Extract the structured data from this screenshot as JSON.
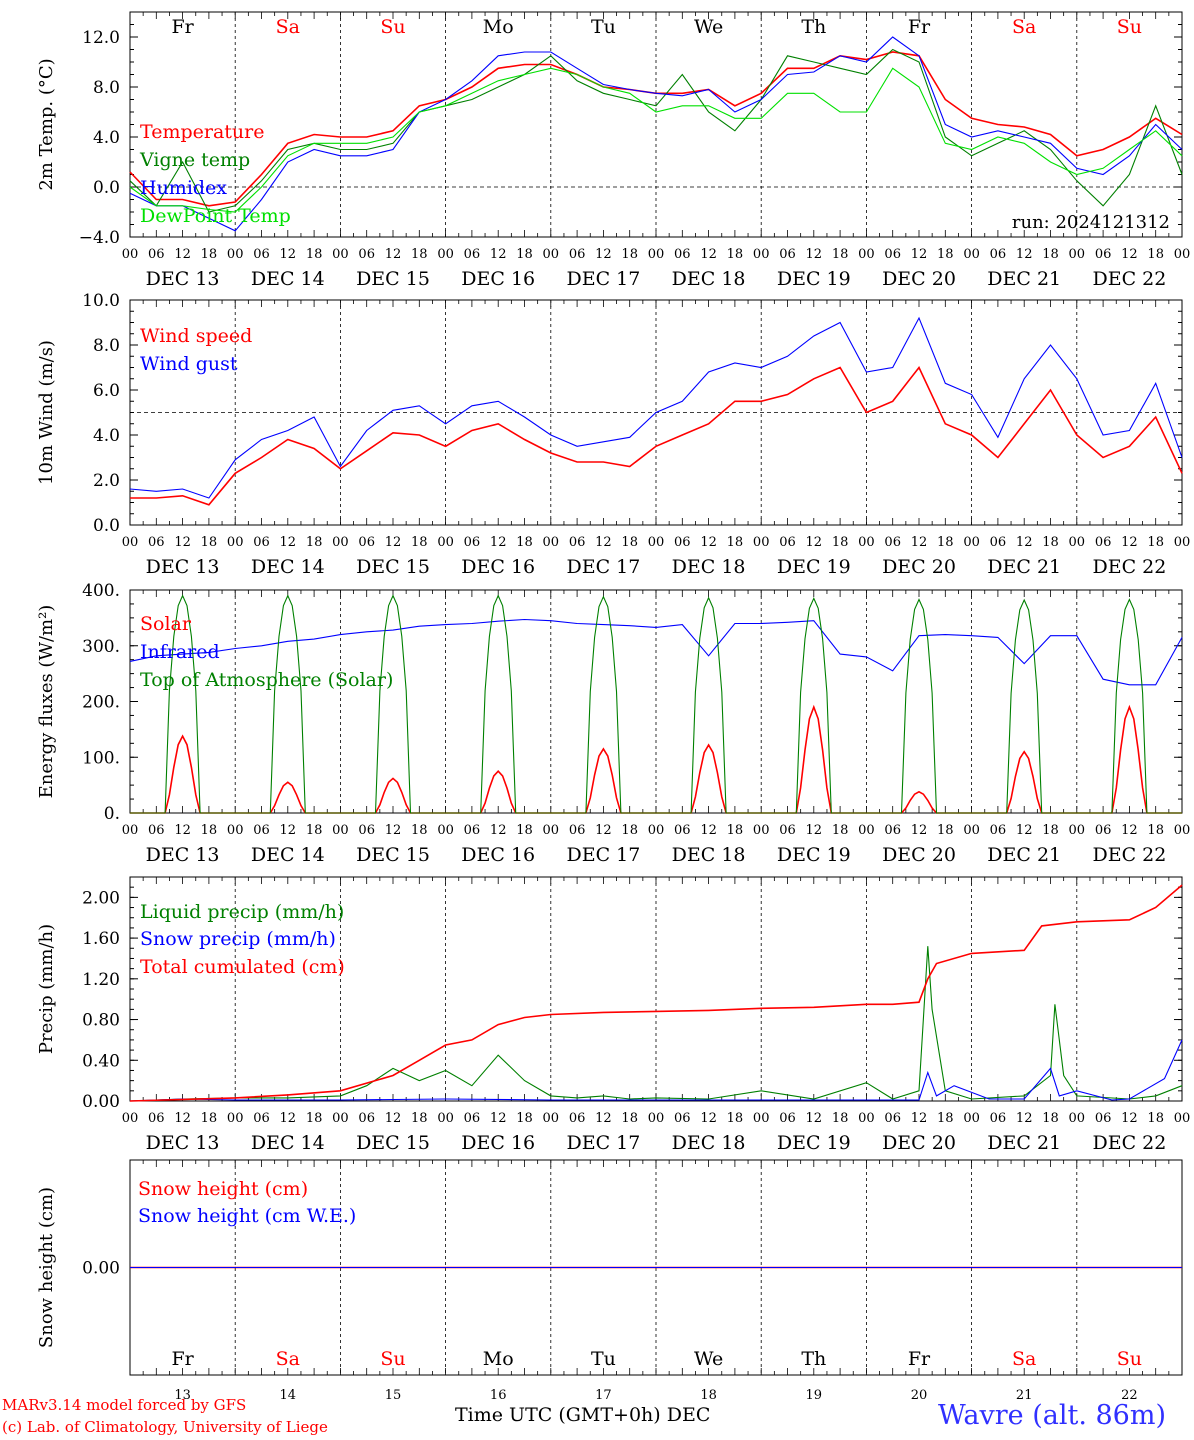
{
  "meta": {
    "run_label": "run: 2024121312",
    "credit1": "MARv3.14 model forced by GFS",
    "credit2": "(c) Lab. of Climatology, University of Liege",
    "station": "Wavre (alt. 86m)",
    "xaxis_title": "Time UTC (GMT+0h) DEC"
  },
  "days": {
    "names": [
      "Fr",
      "Sa",
      "Su",
      "Mo",
      "Tu",
      "We",
      "Th",
      "Fr",
      "Sa",
      "Su"
    ],
    "weekend": [
      false,
      true,
      true,
      false,
      false,
      false,
      false,
      false,
      true,
      true
    ],
    "dates": [
      "DEC 13",
      "DEC 14",
      "DEC 15",
      "DEC 16",
      "DEC 17",
      "DEC 18",
      "DEC 19",
      "DEC 20",
      "DEC 21",
      "DEC 22"
    ],
    "numbers": [
      "13",
      "14",
      "15",
      "16",
      "17",
      "18",
      "19",
      "20",
      "21",
      "22"
    ],
    "hour_ticks": [
      "00",
      "06",
      "12",
      "18"
    ],
    "final_tick": "00"
  },
  "colors": {
    "red": "#ff0000",
    "green": "#008000",
    "blue": "#0000ff",
    "lightgreen": "#00e000",
    "weekend": "#ff0000",
    "axis": "#000000"
  },
  "chart_data": [
    {
      "type": "line",
      "id": "temp",
      "ylabel": "2m Temp. (°C)",
      "ylim": [
        -4,
        14
      ],
      "yticks": [
        -4,
        0,
        4,
        8,
        12
      ],
      "ytick_labels": [
        "−4.0",
        "0.0",
        "4.0",
        "8.0",
        "12.0"
      ],
      "x_unit": "hours since DEC 13 00 UTC",
      "xlim": [
        0,
        240
      ],
      "dashed_hline": 0,
      "series": [
        {
          "name": "Temperature",
          "color": "red",
          "x": [
            0,
            6,
            12,
            18,
            24,
            30,
            36,
            42,
            48,
            54,
            60,
            66,
            72,
            78,
            84,
            90,
            96,
            102,
            108,
            114,
            120,
            126,
            132,
            138,
            144,
            150,
            156,
            162,
            168,
            174,
            180,
            186,
            192,
            198,
            204,
            210,
            216,
            222,
            228,
            234,
            240
          ],
          "y": [
            1.2,
            -1.0,
            -1.0,
            -1.5,
            -1.2,
            1.0,
            3.5,
            4.2,
            4.0,
            4.0,
            4.5,
            6.5,
            7.0,
            8.0,
            9.5,
            9.8,
            9.8,
            9.0,
            8.0,
            7.8,
            7.5,
            7.5,
            7.8,
            6.5,
            7.5,
            9.5,
            9.5,
            10.5,
            10.2,
            10.8,
            10.5,
            7.0,
            5.5,
            5.0,
            4.8,
            4.2,
            2.5,
            3.0,
            4.0,
            5.5,
            4.2
          ]
        },
        {
          "name": "Vigne temp",
          "color": "green",
          "x": [
            0,
            6,
            12,
            18,
            24,
            30,
            36,
            42,
            48,
            54,
            60,
            66,
            72,
            78,
            84,
            90,
            96,
            102,
            108,
            114,
            120,
            126,
            132,
            138,
            144,
            150,
            156,
            162,
            168,
            174,
            180,
            186,
            192,
            198,
            204,
            210,
            216,
            222,
            228,
            234,
            240
          ],
          "y": [
            0.5,
            -1.5,
            2.0,
            -2.0,
            -1.5,
            0.5,
            3.0,
            3.5,
            3.0,
            3.0,
            3.5,
            6.0,
            6.5,
            7.0,
            8.0,
            9.0,
            10.5,
            8.5,
            7.5,
            7.0,
            6.5,
            9.0,
            6.0,
            4.5,
            7.0,
            10.5,
            10.0,
            9.5,
            9.0,
            11.0,
            10.0,
            4.0,
            2.5,
            3.5,
            4.5,
            3.0,
            0.5,
            -1.5,
            1.0,
            6.5,
            1.0
          ]
        },
        {
          "name": "Humidex",
          "color": "blue",
          "x": [
            0,
            6,
            12,
            18,
            24,
            30,
            36,
            42,
            48,
            54,
            60,
            66,
            72,
            78,
            84,
            90,
            96,
            102,
            108,
            114,
            120,
            126,
            132,
            138,
            144,
            150,
            156,
            162,
            168,
            174,
            180,
            186,
            192,
            198,
            204,
            210,
            216,
            222,
            228,
            234,
            240
          ],
          "y": [
            -0.5,
            -1.5,
            -1.5,
            -2.5,
            -3.5,
            -1.0,
            2.0,
            3.0,
            2.5,
            2.5,
            3.0,
            6.0,
            7.0,
            8.5,
            10.5,
            10.8,
            10.8,
            9.5,
            8.2,
            7.8,
            7.5,
            7.3,
            7.8,
            6.0,
            7.0,
            9.0,
            9.2,
            10.5,
            10.0,
            12.0,
            10.5,
            5.0,
            4.0,
            4.5,
            4.0,
            3.5,
            1.5,
            1.0,
            2.5,
            5.0,
            3.0
          ]
        },
        {
          "name": "DewPoint Temp",
          "color": "lightgreen",
          "x": [
            0,
            6,
            12,
            18,
            24,
            30,
            36,
            42,
            48,
            54,
            60,
            66,
            72,
            78,
            84,
            90,
            96,
            102,
            108,
            114,
            120,
            126,
            132,
            138,
            144,
            150,
            156,
            162,
            168,
            174,
            180,
            186,
            192,
            198,
            204,
            210,
            216,
            222,
            228,
            234,
            240
          ],
          "y": [
            0.0,
            -1.5,
            -1.5,
            -1.8,
            -2.0,
            0.0,
            2.5,
            3.5,
            3.5,
            3.5,
            4.0,
            6.0,
            6.5,
            7.5,
            8.5,
            9.0,
            9.5,
            9.0,
            8.0,
            7.5,
            6.0,
            6.5,
            6.5,
            5.5,
            5.5,
            7.5,
            7.5,
            6.0,
            6.0,
            9.5,
            8.0,
            3.5,
            3.0,
            4.0,
            3.5,
            2.0,
            1.0,
            1.5,
            3.0,
            4.5,
            2.5
          ]
        }
      ]
    },
    {
      "type": "line",
      "id": "wind",
      "ylabel": "10m Wind (m/s)",
      "ylim": [
        0,
        10
      ],
      "yticks": [
        0,
        2,
        4,
        6,
        8,
        10
      ],
      "ytick_labels": [
        "0.0",
        "2.0",
        "4.0",
        "6.0",
        "8.0",
        "10.0"
      ],
      "x_unit": "hours since DEC 13 00 UTC",
      "xlim": [
        0,
        240
      ],
      "dashed_hline": 5,
      "series": [
        {
          "name": "Wind speed",
          "color": "red",
          "x": [
            0,
            6,
            12,
            18,
            24,
            30,
            36,
            42,
            48,
            54,
            60,
            66,
            72,
            78,
            84,
            90,
            96,
            102,
            108,
            114,
            120,
            126,
            132,
            138,
            144,
            150,
            156,
            162,
            168,
            174,
            180,
            186,
            192,
            198,
            204,
            210,
            216,
            222,
            228,
            234,
            240
          ],
          "y": [
            1.2,
            1.2,
            1.3,
            0.9,
            2.3,
            3.0,
            3.8,
            3.4,
            2.5,
            3.3,
            4.1,
            4.0,
            3.5,
            4.2,
            4.5,
            3.8,
            3.2,
            2.8,
            2.8,
            2.6,
            3.5,
            4.0,
            4.5,
            5.5,
            5.5,
            5.8,
            6.5,
            7.0,
            5.0,
            5.5,
            7.0,
            4.5,
            4.0,
            3.0,
            4.5,
            6.0,
            4.0,
            3.0,
            3.5,
            4.8,
            2.3
          ]
        },
        {
          "name": "Wind gust",
          "color": "blue",
          "x": [
            0,
            6,
            12,
            18,
            24,
            30,
            36,
            42,
            48,
            54,
            60,
            66,
            72,
            78,
            84,
            90,
            96,
            102,
            108,
            114,
            120,
            126,
            132,
            138,
            144,
            150,
            156,
            162,
            168,
            174,
            180,
            186,
            192,
            198,
            204,
            210,
            216,
            222,
            228,
            234,
            240
          ],
          "y": [
            1.6,
            1.5,
            1.6,
            1.2,
            2.9,
            3.8,
            4.2,
            4.8,
            2.6,
            4.2,
            5.1,
            5.3,
            4.5,
            5.3,
            5.5,
            4.8,
            4.0,
            3.5,
            3.7,
            3.9,
            5.0,
            5.5,
            6.8,
            7.2,
            7.0,
            7.5,
            8.4,
            9.0,
            6.8,
            7.0,
            9.2,
            6.3,
            5.8,
            3.9,
            6.5,
            8.0,
            6.5,
            4.0,
            4.2,
            6.3,
            3.0
          ]
        }
      ]
    },
    {
      "type": "line",
      "id": "flux",
      "ylabel": "Energy fluxes (W/m²)",
      "ylim": [
        0,
        400
      ],
      "yticks": [
        0,
        100,
        200,
        300,
        400
      ],
      "ytick_labels": [
        "0.",
        "100.",
        "200.",
        "300.",
        "400."
      ],
      "x_unit": "hours since DEC 13 00 UTC",
      "xlim": [
        0,
        240
      ],
      "solar_day_window_hours": [
        8,
        16
      ],
      "series": [
        {
          "name": "Solar",
          "color": "red",
          "daily_peak": [
            138,
            55,
            62,
            75,
            115,
            122,
            190,
            38,
            110,
            190
          ]
        },
        {
          "name": "Infrared",
          "color": "blue",
          "x": [
            0,
            6,
            12,
            18,
            24,
            30,
            36,
            42,
            48,
            54,
            60,
            66,
            72,
            78,
            84,
            90,
            96,
            102,
            108,
            114,
            120,
            126,
            132,
            138,
            144,
            150,
            156,
            162,
            168,
            174,
            180,
            186,
            192,
            198,
            204,
            210,
            216,
            222,
            228,
            234,
            240
          ],
          "y": [
            272,
            282,
            285,
            288,
            295,
            300,
            308,
            312,
            320,
            325,
            328,
            335,
            338,
            340,
            344,
            347,
            345,
            340,
            338,
            336,
            333,
            338,
            282,
            340,
            340,
            342,
            345,
            285,
            280,
            255,
            318,
            320,
            318,
            315,
            268,
            318,
            318,
            240,
            230,
            230,
            315
          ]
        },
        {
          "name": "Top of Atmosphere (Solar)",
          "color": "green",
          "daily_peak": [
            390,
            390,
            390,
            390,
            388,
            386,
            385,
            383,
            382,
            383
          ]
        }
      ]
    },
    {
      "type": "line",
      "id": "precip",
      "ylabel": "Precip (mm/h)",
      "ylim": [
        0,
        2.2
      ],
      "yticks": [
        0,
        0.4,
        0.8,
        1.2,
        1.6,
        2.0
      ],
      "ytick_labels": [
        "0.00",
        "0.40",
        "0.80",
        "1.20",
        "1.60",
        "2.00"
      ],
      "x_unit": "hours since DEC 13 00 UTC",
      "xlim": [
        0,
        240
      ],
      "series": [
        {
          "name": "Liquid precip (mm/h)",
          "color": "green",
          "x": [
            0,
            12,
            24,
            36,
            48,
            54,
            60,
            66,
            72,
            78,
            84,
            90,
            96,
            102,
            108,
            114,
            120,
            132,
            144,
            156,
            168,
            174,
            180,
            182,
            183,
            186,
            192,
            204,
            210,
            211,
            213,
            216,
            228,
            234,
            240
          ],
          "y": [
            0,
            0.02,
            0.03,
            0.03,
            0.05,
            0.15,
            0.32,
            0.2,
            0.3,
            0.15,
            0.45,
            0.2,
            0.05,
            0.03,
            0.05,
            0.02,
            0.03,
            0.02,
            0.1,
            0.02,
            0.18,
            0.02,
            0.1,
            1.52,
            0.9,
            0.1,
            0.02,
            0.05,
            0.25,
            0.95,
            0.25,
            0.05,
            0.02,
            0.05,
            0.15
          ]
        },
        {
          "name": "Snow precip (mm/h)",
          "color": "blue",
          "x": [
            0,
            12,
            24,
            48,
            72,
            96,
            120,
            144,
            168,
            180,
            182,
            184,
            188,
            196,
            204,
            210,
            212,
            216,
            224,
            228,
            232,
            236,
            240
          ],
          "y": [
            0,
            0.02,
            0.01,
            0.01,
            0.02,
            0.01,
            0.01,
            0.01,
            0.01,
            0.01,
            0.28,
            0.05,
            0.15,
            0.02,
            0.02,
            0.32,
            0.05,
            0.1,
            0.01,
            0.02,
            0.12,
            0.22,
            0.6
          ]
        },
        {
          "name": "Total cumulated (cm)",
          "color": "red",
          "x": [
            0,
            24,
            36,
            48,
            60,
            66,
            72,
            78,
            84,
            90,
            96,
            108,
            120,
            132,
            144,
            156,
            168,
            174,
            180,
            182,
            184,
            192,
            204,
            208,
            216,
            228,
            234,
            240
          ],
          "y": [
            0,
            0.03,
            0.06,
            0.1,
            0.25,
            0.4,
            0.55,
            0.6,
            0.75,
            0.82,
            0.85,
            0.87,
            0.88,
            0.89,
            0.91,
            0.92,
            0.95,
            0.95,
            0.97,
            1.2,
            1.35,
            1.45,
            1.48,
            1.72,
            1.76,
            1.78,
            1.9,
            2.12
          ]
        }
      ]
    },
    {
      "type": "line",
      "id": "snow",
      "ylabel": "Snow height (cm)",
      "ytick_labels": [
        "0.00"
      ],
      "x_unit": "hours since DEC 13 00 UTC",
      "xlim": [
        0,
        240
      ],
      "series": [
        {
          "name": "Snow height (cm)",
          "color": "red",
          "x": [
            0,
            240
          ],
          "y": [
            0,
            0
          ]
        },
        {
          "name": "Snow height (cm W.E.)",
          "color": "blue",
          "x": [
            0,
            240
          ],
          "y": [
            0,
            0
          ]
        }
      ]
    }
  ]
}
